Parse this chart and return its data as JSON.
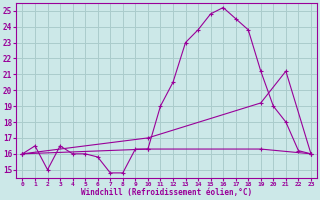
{
  "xlabel": "Windchill (Refroidissement éolien,°C)",
  "xlim": [
    -0.5,
    23.5
  ],
  "ylim": [
    14.5,
    25.5
  ],
  "yticks": [
    15,
    16,
    17,
    18,
    19,
    20,
    21,
    22,
    23,
    24,
    25
  ],
  "xticks": [
    0,
    1,
    2,
    3,
    4,
    5,
    6,
    7,
    8,
    9,
    10,
    11,
    12,
    13,
    14,
    15,
    16,
    17,
    18,
    19,
    20,
    21,
    22,
    23
  ],
  "bg_color": "#cce8e8",
  "line_color": "#990099",
  "grid_color": "#aacccc",
  "line1_x": [
    0,
    1,
    2,
    3,
    4,
    5,
    6,
    7,
    8,
    9,
    10,
    11,
    12,
    13,
    14,
    15,
    16,
    17,
    18,
    19,
    20,
    21,
    22,
    23
  ],
  "line1_y": [
    16.0,
    16.5,
    15.0,
    16.5,
    16.0,
    16.0,
    15.8,
    14.8,
    14.8,
    16.3,
    16.3,
    19.0,
    20.5,
    23.0,
    23.8,
    24.8,
    25.2,
    24.5,
    23.8,
    21.2,
    19.0,
    18.0,
    16.2,
    16.0
  ],
  "line2_x": [
    0,
    10,
    19,
    21,
    23
  ],
  "line2_y": [
    16.0,
    17.0,
    19.2,
    21.2,
    16.0
  ],
  "line3_x": [
    0,
    10,
    19,
    23
  ],
  "line3_y": [
    16.0,
    16.3,
    16.3,
    16.0
  ]
}
